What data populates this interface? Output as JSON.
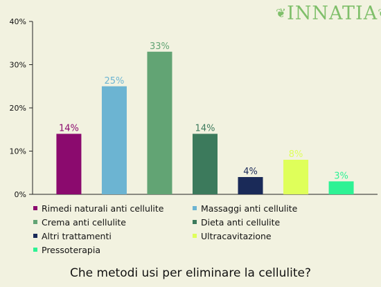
{
  "brand": {
    "logo_text": "INNATIA"
  },
  "caption": "Che metodi usi per eliminare la cellulite?",
  "chart_data": {
    "type": "bar",
    "categories": [
      "Rimedi naturali anti cellulite",
      "Massaggi anti cellulite",
      "Crema anti cellulite",
      "Dieta anti cellulite",
      "Altri trattamenti",
      "Ultracavitazione",
      "Pressoterapia"
    ],
    "values": [
      14,
      25,
      33,
      14,
      4,
      8,
      3
    ],
    "data_labels": [
      "14%",
      "25%",
      "33%",
      "14%",
      "4%",
      "8%",
      "3%"
    ],
    "colors": [
      "#8b0a6e",
      "#6cb4d2",
      "#62a474",
      "#3c7a5c",
      "#1a2a58",
      "#dfff5a",
      "#2ef294"
    ],
    "label_colors": [
      "#8b0a6e",
      "#6cb4d2",
      "#62a474",
      "#3c7a5c",
      "#1a2a58",
      "#dfff5a",
      "#2ef294"
    ],
    "ylim": [
      0,
      40
    ],
    "yticks": [
      0,
      10,
      20,
      30,
      40
    ],
    "ytick_labels": [
      "0%",
      "10%",
      "20%",
      "30%",
      "40%"
    ],
    "grid": false,
    "legend_position": "bottom"
  }
}
